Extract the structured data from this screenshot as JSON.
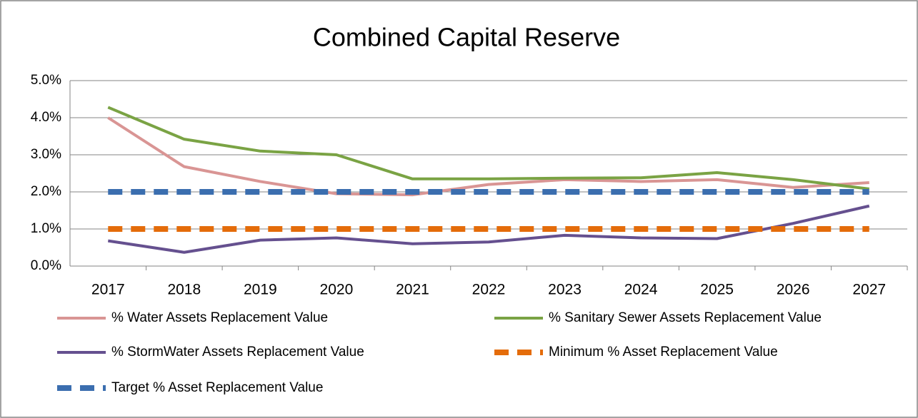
{
  "chart_data": {
    "type": "line",
    "title": "Combined Capital Reserve",
    "categories": [
      "2017",
      "2018",
      "2019",
      "2020",
      "2021",
      "2022",
      "2023",
      "2024",
      "2025",
      "2026",
      "2027"
    ],
    "series": [
      {
        "name": "% Water Assets Replacement Value",
        "color": "#d99594",
        "dashed": false,
        "values": [
          4.0,
          2.68,
          2.28,
          1.95,
          1.92,
          2.2,
          2.33,
          2.28,
          2.33,
          2.12,
          2.25
        ]
      },
      {
        "name": "% Sanitary Sewer Assets Replacement Value",
        "color": "#7aa344",
        "dashed": false,
        "values": [
          4.28,
          3.42,
          3.1,
          3.0,
          2.35,
          2.35,
          2.37,
          2.38,
          2.52,
          2.33,
          2.08
        ]
      },
      {
        "name": "% StormWater Assets Replacement Value",
        "color": "#65508f",
        "dashed": false,
        "values": [
          0.68,
          0.37,
          0.7,
          0.76,
          0.6,
          0.65,
          0.83,
          0.76,
          0.74,
          1.15,
          1.62
        ]
      },
      {
        "name": "Minimum % Asset Replacement Value",
        "color": "#e46c0a",
        "dashed": true,
        "values": [
          1,
          1,
          1,
          1,
          1,
          1,
          1,
          1,
          1,
          1,
          1
        ]
      },
      {
        "name": "Target % Asset Replacement Value",
        "color": "#3b6eaf",
        "dashed": true,
        "values": [
          2,
          2,
          2,
          2,
          2,
          2,
          2,
          2,
          2,
          2,
          2
        ]
      }
    ],
    "ylim": [
      0,
      5
    ],
    "yticks": [
      {
        "value": 0,
        "label": "0.0%"
      },
      {
        "value": 1,
        "label": "1.0%"
      },
      {
        "value": 2,
        "label": "2.0%"
      },
      {
        "value": 3,
        "label": "3.0%"
      },
      {
        "value": 4,
        "label": "4.0%"
      },
      {
        "value": 5,
        "label": "5.0%"
      }
    ],
    "grid": true
  }
}
